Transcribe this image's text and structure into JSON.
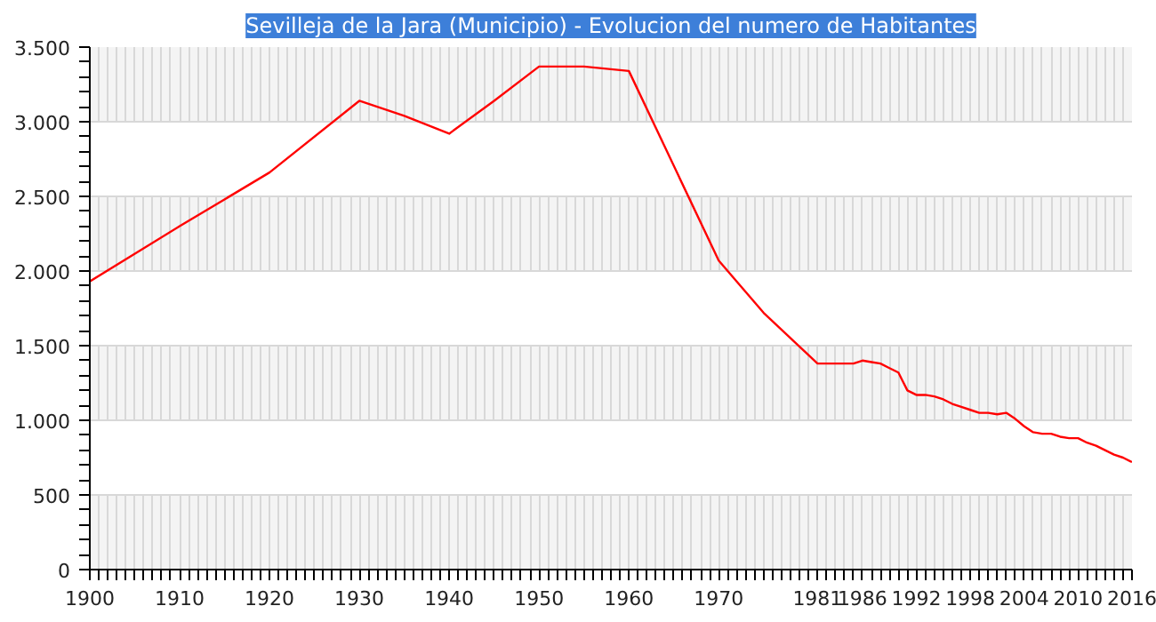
{
  "chart_data": {
    "type": "line",
    "title": "Sevilleja de la Jara (Municipio) - Evolucion del numero de Habitantes",
    "x": [
      1900,
      1910,
      1920,
      1930,
      1935,
      1940,
      1945,
      1950,
      1955,
      1960,
      1970,
      1975,
      1981,
      1985,
      1986,
      1987,
      1988,
      1989,
      1990,
      1991,
      1992,
      1993,
      1994,
      1995,
      1996,
      1997,
      1998,
      1999,
      2000,
      2001,
      2002,
      2003,
      2004,
      2005,
      2006,
      2007,
      2008,
      2009,
      2010,
      2011,
      2012,
      2013,
      2014,
      2015,
      2016
    ],
    "series": [
      {
        "color": "#ff0000",
        "values": [
          1930,
          2300,
          2660,
          3140,
          3040,
          2920,
          3140,
          3370,
          3370,
          3340,
          2070,
          1720,
          1380,
          1380,
          1400,
          1390,
          1380,
          1350,
          1320,
          1200,
          1170,
          1170,
          1160,
          1140,
          1110,
          1090,
          1070,
          1050,
          1050,
          1040,
          1050,
          1010,
          960,
          920,
          910,
          910,
          890,
          880,
          880,
          850,
          830,
          800,
          770,
          750,
          720
        ]
      }
    ],
    "xlim": [
      1900,
      2016
    ],
    "xticks": [
      1900,
      1910,
      1920,
      1930,
      1940,
      1950,
      1960,
      1970,
      1981,
      1986,
      1992,
      1998,
      2004,
      2010,
      2016
    ],
    "ylim": [
      0,
      3500
    ],
    "yticks": [
      {
        "value": 0,
        "label": "0"
      },
      {
        "value": 500,
        "label": "500"
      },
      {
        "value": 1000,
        "label": "1.000"
      },
      {
        "value": 1500,
        "label": "1.500"
      },
      {
        "value": 2000,
        "label": "2.000"
      },
      {
        "value": 2500,
        "label": "2.500"
      },
      {
        "value": 3000,
        "label": "3.000"
      },
      {
        "value": 3500,
        "label": "3.500"
      }
    ],
    "grid": true,
    "marker": "none",
    "line_style": "solid"
  }
}
